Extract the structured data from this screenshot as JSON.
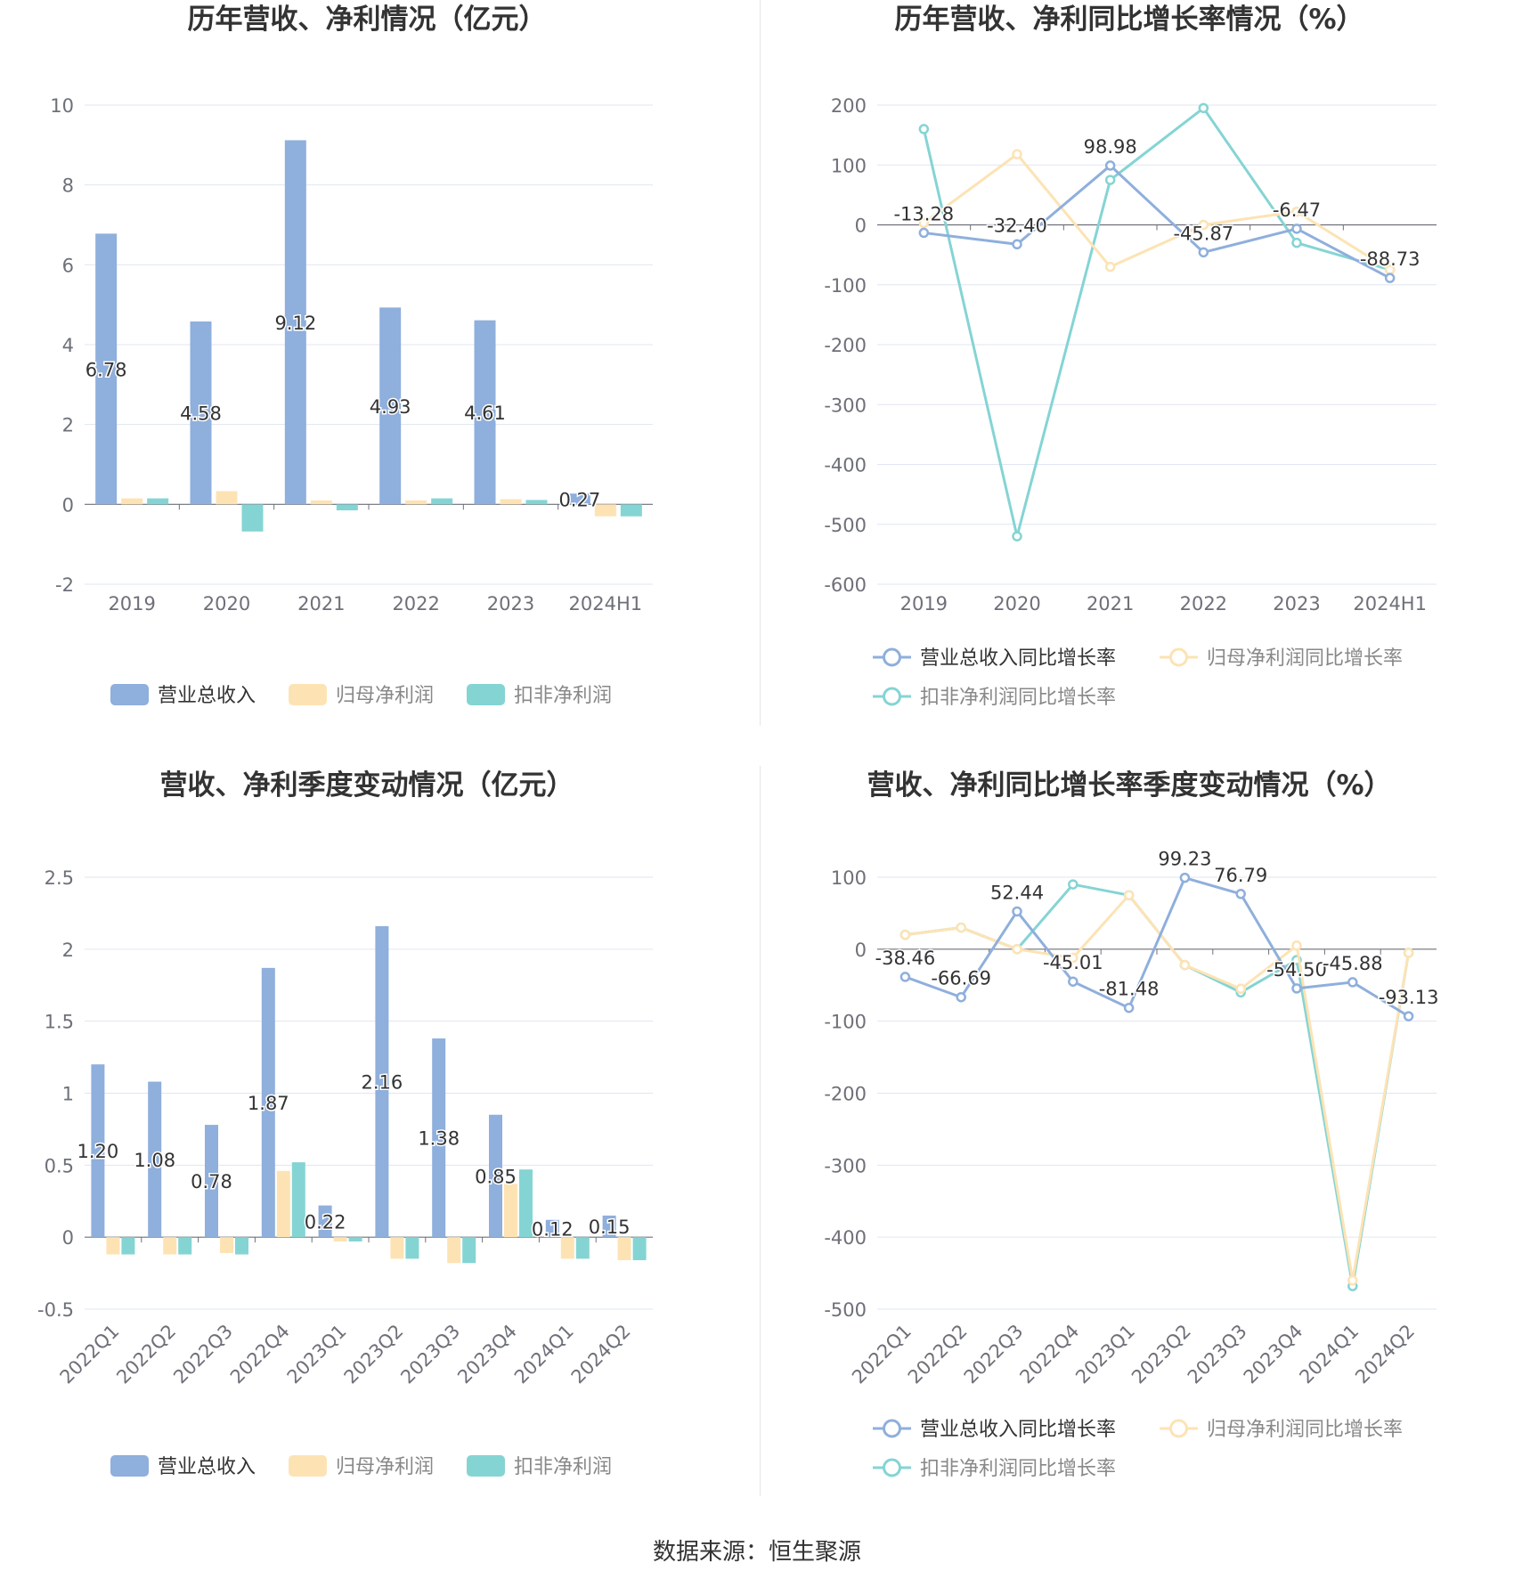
{
  "source": "数据来源：恒生聚源",
  "colors": {
    "revenue": "#8fafdc",
    "net": "#fde3b4",
    "adj": "#85d4d4",
    "grid": "#e0e6f1",
    "axis": "#6e7079",
    "text": "#333333"
  },
  "chart_data": [
    {
      "type": "bar",
      "title": "历年营收、净利情况（亿元）",
      "categories": [
        "2019",
        "2020",
        "2021",
        "2022",
        "2023",
        "2024H1"
      ],
      "ylim": [
        -2,
        10
      ],
      "yticks": [
        "10",
        "8",
        "6",
        "4",
        "2",
        "0",
        "-2"
      ],
      "series": [
        {
          "name": "营业总收入",
          "values": [
            6.78,
            4.58,
            9.12,
            4.93,
            4.61,
            0.27
          ],
          "labels": [
            "6.78",
            "4.58",
            "9.12",
            "4.93",
            "4.61",
            "0.27"
          ]
        },
        {
          "name": "归母净利润",
          "values": [
            0.15,
            0.33,
            0.1,
            0.1,
            0.13,
            -0.3
          ]
        },
        {
          "name": "扣非净利润",
          "values": [
            0.15,
            -0.68,
            -0.15,
            0.15,
            0.11,
            -0.3
          ]
        }
      ],
      "legend": "bottom"
    },
    {
      "type": "line",
      "title": "历年营收、净利同比增长率情况（%）",
      "categories": [
        "2019",
        "2020",
        "2021",
        "2022",
        "2023",
        "2024H1"
      ],
      "ylim": [
        -600,
        200
      ],
      "yticks": [
        "200",
        "100",
        "0",
        "-100",
        "-200",
        "-300",
        "-400",
        "-500",
        "-600"
      ],
      "series": [
        {
          "name": "营业总收入同比增长率",
          "values": [
            -13.28,
            -32.4,
            98.98,
            -45.87,
            -6.47,
            -88.73
          ],
          "labels": [
            "-13.28",
            "-32.40",
            "98.98",
            "-45.87",
            "-6.47",
            "-88.73"
          ]
        },
        {
          "name": "归母净利润同比增长率",
          "values": [
            3,
            118,
            -70,
            0,
            22,
            -75
          ]
        },
        {
          "name": "扣非净利润同比增长率",
          "values": [
            160,
            -520,
            75,
            195,
            -30,
            -75
          ]
        }
      ],
      "legend": "bottom"
    },
    {
      "type": "bar",
      "title": "营收、净利季度变动情况（亿元）",
      "categories": [
        "2022Q1",
        "2022Q2",
        "2022Q3",
        "2022Q4",
        "2023Q1",
        "2023Q2",
        "2023Q3",
        "2023Q4",
        "2024Q1",
        "2024Q2"
      ],
      "ylim": [
        -0.5,
        2.5
      ],
      "yticks": [
        "2.5",
        "2",
        "1.5",
        "1",
        "0.5",
        "0",
        "-0.5"
      ],
      "series": [
        {
          "name": "营业总收入",
          "values": [
            1.2,
            1.08,
            0.78,
            1.87,
            0.22,
            2.16,
            1.38,
            0.85,
            0.12,
            0.15
          ],
          "labels": [
            "1.20",
            "1.08",
            "0.78",
            "1.87",
            "0.22",
            "2.16",
            "1.38",
            "0.85",
            "0.12",
            "0.15"
          ]
        },
        {
          "name": "归母净利润",
          "values": [
            -0.12,
            -0.12,
            -0.11,
            0.46,
            -0.03,
            -0.15,
            -0.18,
            0.37,
            -0.15,
            -0.16
          ]
        },
        {
          "name": "扣非净利润",
          "values": [
            -0.12,
            -0.12,
            -0.12,
            0.52,
            -0.03,
            -0.15,
            -0.18,
            0.47,
            -0.15,
            -0.16
          ]
        }
      ],
      "legend": "bottom"
    },
    {
      "type": "line",
      "title": "营收、净利同比增长率季度变动情况（%）",
      "categories": [
        "2022Q1",
        "2022Q2",
        "2022Q3",
        "2022Q4",
        "2023Q1",
        "2023Q2",
        "2023Q3",
        "2023Q4",
        "2024Q1",
        "2024Q2"
      ],
      "ylim": [
        -500,
        100
      ],
      "yticks": [
        "100",
        "0",
        "-100",
        "-200",
        "-300",
        "-400",
        "-500"
      ],
      "series": [
        {
          "name": "营业总收入同比增长率",
          "values": [
            -38.46,
            -66.69,
            52.44,
            -45.01,
            -81.48,
            99.23,
            76.79,
            -54.5,
            -45.88,
            -93.13
          ],
          "labels": [
            "-38.46",
            "-66.69",
            "52.44",
            "-45.01",
            "-81.48",
            "99.23",
            "76.79",
            "-54.50",
            "-45.88",
            "-93.13"
          ]
        },
        {
          "name": "归母净利润同比增长率",
          "values": [
            20,
            30,
            0,
            -12,
            75,
            -22,
            -55,
            5,
            -460,
            -5
          ]
        },
        {
          "name": "扣非净利润同比增长率",
          "values": [
            20,
            30,
            0,
            90,
            75,
            -22,
            -60,
            -15,
            -468,
            -5
          ]
        }
      ],
      "legend": "bottom"
    }
  ]
}
